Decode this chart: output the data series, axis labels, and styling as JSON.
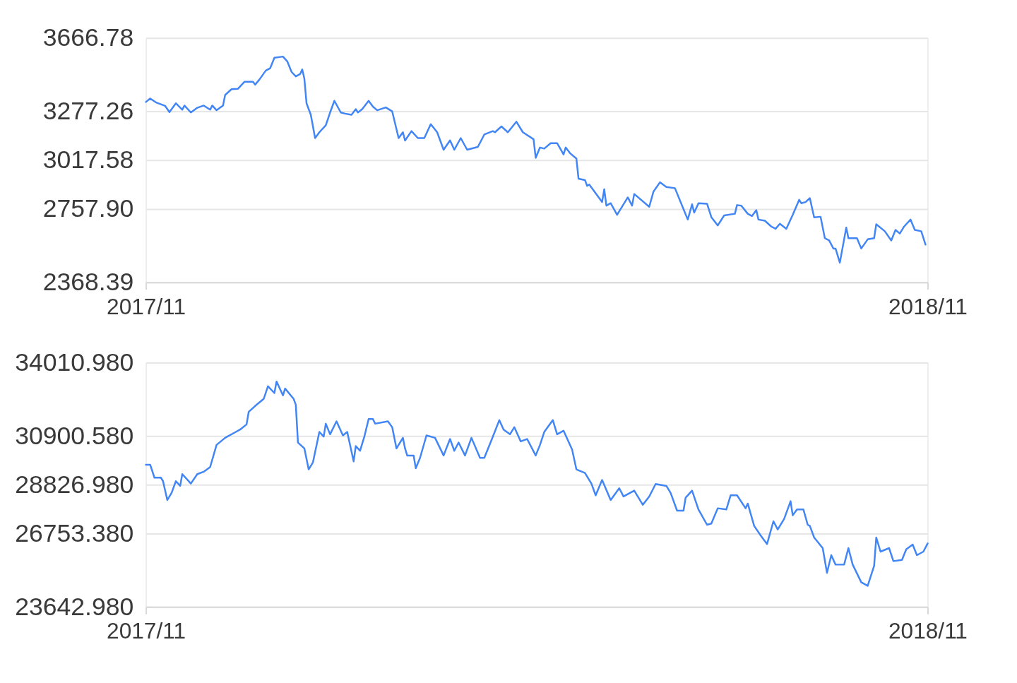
{
  "chart_data": [
    {
      "type": "line",
      "color": "#4285f4",
      "grid": "y",
      "xlim": [
        "2017-11-28",
        "2018-11-28"
      ],
      "xticks": [
        {
          "value": "2017-11-28",
          "label": "2017/11"
        },
        {
          "value": "2018-11-28",
          "label": "2018/11"
        }
      ],
      "ylim": [
        2368.39,
        3666.78
      ],
      "yticks": [
        2368.39,
        {
          "value": 2757.9,
          "label": "2757.90"
        },
        3017.58,
        3277.26,
        3666.78
      ],
      "x": [
        "2017-11-28",
        "2017-11-30",
        "2017-12-03",
        "2017-12-07",
        "2017-12-09",
        "2017-12-12",
        "2017-12-15",
        "2017-12-16",
        "2017-12-19",
        "2017-12-22",
        "2017-12-25",
        "2017-12-28",
        "2017-12-29",
        "2017-12-31",
        "2018-01-03",
        "2018-01-04",
        "2018-01-07",
        "2018-01-10",
        "2018-01-13",
        "2018-01-17",
        "2018-01-18",
        "2018-01-20",
        "2018-01-23",
        "2018-01-25",
        "2018-01-27",
        "2018-01-31",
        "2018-02-02",
        "2018-02-04",
        "2018-02-06",
        "2018-02-08",
        "2018-02-09",
        "2018-02-10",
        "2018-02-11",
        "2018-02-13",
        "2018-02-15",
        "2018-02-17",
        "2018-02-20",
        "2018-02-22",
        "2018-02-24",
        "2018-02-27",
        "2018-03-01",
        "2018-03-04",
        "2018-03-06",
        "2018-03-07",
        "2018-03-09",
        "2018-03-12",
        "2018-03-14",
        "2018-03-16",
        "2018-03-20",
        "2018-03-23",
        "2018-03-26",
        "2018-03-28",
        "2018-03-29",
        "2018-04-01",
        "2018-04-04",
        "2018-04-07",
        "2018-04-10",
        "2018-04-13",
        "2018-04-16",
        "2018-04-19",
        "2018-04-21",
        "2018-04-24",
        "2018-04-27",
        "2018-05-02",
        "2018-05-05",
        "2018-05-09",
        "2018-05-10",
        "2018-05-13",
        "2018-05-16",
        "2018-05-20",
        "2018-05-23",
        "2018-05-28",
        "2018-05-29",
        "2018-05-31",
        "2018-06-02",
        "2018-06-05",
        "2018-06-08",
        "2018-06-11",
        "2018-06-12",
        "2018-06-14",
        "2018-06-17",
        "2018-06-18",
        "2018-06-21",
        "2018-06-22",
        "2018-06-23",
        "2018-06-29",
        "2018-06-30",
        "2018-07-01",
        "2018-07-03",
        "2018-07-06",
        "2018-07-11",
        "2018-07-13",
        "2018-07-14",
        "2018-07-21",
        "2018-07-23",
        "2018-07-26",
        "2018-07-29",
        "2018-08-02",
        "2018-08-06",
        "2018-08-08",
        "2018-08-10",
        "2018-08-11",
        "2018-08-13",
        "2018-08-17",
        "2018-08-19",
        "2018-08-22",
        "2018-08-25",
        "2018-08-30",
        "2018-08-31",
        "2018-09-02",
        "2018-09-05",
        "2018-09-07",
        "2018-09-09",
        "2018-09-10",
        "2018-09-13",
        "2018-09-16",
        "2018-09-18",
        "2018-09-20",
        "2018-09-23",
        "2018-09-26",
        "2018-09-29",
        "2018-09-30",
        "2018-10-02",
        "2018-10-04",
        "2018-10-06",
        "2018-10-09",
        "2018-10-11",
        "2018-10-13",
        "2018-10-15",
        "2018-10-16",
        "2018-10-18",
        "2018-10-21",
        "2018-10-22",
        "2018-10-26",
        "2018-10-28",
        "2018-10-31",
        "2018-11-03",
        "2018-11-04",
        "2018-11-08",
        "2018-11-11",
        "2018-11-13",
        "2018-11-15",
        "2018-11-17",
        "2018-11-20",
        "2018-11-22",
        "2018-11-25",
        "2018-11-27"
      ],
      "values": [
        3327,
        3345,
        3323,
        3306,
        3273,
        3320,
        3286,
        3308,
        3271,
        3296,
        3308,
        3286,
        3308,
        3283,
        3308,
        3364,
        3395,
        3397,
        3434,
        3434,
        3419,
        3446,
        3494,
        3506,
        3562,
        3568,
        3543,
        3487,
        3463,
        3475,
        3500,
        3450,
        3320,
        3259,
        3135,
        3166,
        3203,
        3271,
        3333,
        3271,
        3265,
        3259,
        3289,
        3271,
        3289,
        3333,
        3302,
        3283,
        3298,
        3277,
        3135,
        3166,
        3122,
        3172,
        3135,
        3135,
        3209,
        3166,
        3073,
        3123,
        3073,
        3135,
        3073,
        3088,
        3154,
        3172,
        3166,
        3197,
        3166,
        3222,
        3166,
        3129,
        3030,
        3085,
        3079,
        3108,
        3108,
        3048,
        3085,
        3055,
        3026,
        2919,
        2912,
        2881,
        2888,
        2795,
        2863,
        2776,
        2789,
        2727,
        2820,
        2776,
        2838,
        2770,
        2851,
        2900,
        2875,
        2869,
        2758,
        2702,
        2783,
        2739,
        2789,
        2786,
        2715,
        2671,
        2724,
        2733,
        2779,
        2776,
        2733,
        2721,
        2752,
        2702,
        2696,
        2665,
        2653,
        2680,
        2653,
        2727,
        2807,
        2789,
        2795,
        2816,
        2714,
        2717,
        2603,
        2591,
        2548,
        2548,
        2473,
        2659,
        2603,
        2603,
        2548,
        2597,
        2603,
        2677,
        2640,
        2591,
        2647,
        2628,
        2665,
        2702,
        2647,
        2640,
        2569
      ]
    },
    {
      "type": "line",
      "color": "#4285f4",
      "grid": "y",
      "xlim": [
        "2017-11-28",
        "2018-11-28"
      ],
      "xticks": [
        {
          "value": "2017-11-28",
          "label": "2017/11"
        },
        {
          "value": "2018-11-28",
          "label": "2018/11"
        }
      ],
      "ylim": [
        23642.98,
        34010.98
      ],
      "yticks": [
        {
          "value": 23642.98,
          "label": "23642.980"
        },
        {
          "value": 26753.38,
          "label": "26753.380"
        },
        {
          "value": 28826.98,
          "label": "28826.980"
        },
        {
          "value": 30900.58,
          "label": "30900.580"
        },
        {
          "value": 34010.98,
          "label": "34010.980"
        }
      ],
      "x": [
        "2017-11-28",
        "2017-11-30",
        "2017-12-02",
        "2017-12-05",
        "2017-12-06",
        "2017-12-08",
        "2017-12-10",
        "2017-12-12",
        "2017-12-14",
        "2017-12-15",
        "2017-12-19",
        "2017-12-22",
        "2017-12-25",
        "2017-12-28",
        "2017-12-31",
        "2018-01-04",
        "2018-01-09",
        "2018-01-11",
        "2018-01-14",
        "2018-01-15",
        "2018-01-18",
        "2018-01-22",
        "2018-01-24",
        "2018-01-27",
        "2018-01-28",
        "2018-01-31",
        "2018-02-01",
        "2018-02-05",
        "2018-02-06",
        "2018-02-07",
        "2018-02-10",
        "2018-02-12",
        "2018-02-14",
        "2018-02-17",
        "2018-02-19",
        "2018-02-20",
        "2018-02-22",
        "2018-02-25",
        "2018-02-28",
        "2018-03-02",
        "2018-03-05",
        "2018-03-06",
        "2018-03-08",
        "2018-03-10",
        "2018-03-12",
        "2018-03-14",
        "2018-03-15",
        "2018-03-21",
        "2018-03-23",
        "2018-03-25",
        "2018-03-28",
        "2018-03-29",
        "2018-03-30",
        "2018-04-02",
        "2018-04-03",
        "2018-04-05",
        "2018-04-08",
        "2018-04-12",
        "2018-04-16",
        "2018-04-19",
        "2018-04-21",
        "2018-04-23",
        "2018-04-26",
        "2018-04-29",
        "2018-05-03",
        "2018-05-05",
        "2018-05-09",
        "2018-05-12",
        "2018-05-14",
        "2018-05-17",
        "2018-05-19",
        "2018-05-22",
        "2018-05-25",
        "2018-05-29",
        "2018-05-31",
        "2018-06-02",
        "2018-06-06",
        "2018-06-08",
        "2018-06-11",
        "2018-06-15",
        "2018-06-17",
        "2018-06-21",
        "2018-06-24",
        "2018-06-26",
        "2018-06-29",
        "2018-07-03",
        "2018-07-07",
        "2018-07-09",
        "2018-07-14",
        "2018-07-18",
        "2018-07-21",
        "2018-07-24",
        "2018-07-29",
        "2018-07-31",
        "2018-08-03",
        "2018-08-06",
        "2018-08-07",
        "2018-08-10",
        "2018-08-13",
        "2018-08-17",
        "2018-08-19",
        "2018-08-22",
        "2018-08-26",
        "2018-08-28",
        "2018-08-31",
        "2018-09-04",
        "2018-09-05",
        "2018-09-08",
        "2018-09-11",
        "2018-09-14",
        "2018-09-17",
        "2018-09-19",
        "2018-09-22",
        "2018-09-25",
        "2018-09-26",
        "2018-09-28",
        "2018-10-01",
        "2018-10-03",
        "2018-10-04",
        "2018-10-06",
        "2018-10-10",
        "2018-10-12",
        "2018-10-14",
        "2018-10-16",
        "2018-10-20",
        "2018-10-22",
        "2018-10-24",
        "2018-10-28",
        "2018-10-31",
        "2018-11-03",
        "2018-11-04",
        "2018-11-06",
        "2018-11-10",
        "2018-11-12",
        "2018-11-16",
        "2018-11-18",
        "2018-11-21",
        "2018-11-23",
        "2018-11-26",
        "2018-11-28"
      ],
      "values": [
        29680,
        29680,
        29130,
        29130,
        28980,
        28180,
        28480,
        28980,
        28780,
        29280,
        28880,
        29280,
        29380,
        29580,
        30520,
        30820,
        31070,
        31170,
        31390,
        31920,
        32170,
        32470,
        33010,
        32720,
        33210,
        32620,
        32910,
        32470,
        32220,
        30620,
        30370,
        29480,
        29780,
        31070,
        30870,
        31420,
        30970,
        31520,
        30920,
        31070,
        29820,
        30470,
        30270,
        30870,
        31620,
        31620,
        31420,
        31520,
        31270,
        30370,
        30820,
        30370,
        30070,
        30070,
        29530,
        29970,
        30920,
        30820,
        30070,
        30770,
        30270,
        30620,
        30070,
        30820,
        29970,
        29970,
        30870,
        31570,
        31170,
        30970,
        31270,
        30670,
        30770,
        30070,
        30520,
        31070,
        31570,
        30970,
        31120,
        30320,
        29480,
        29330,
        28880,
        28380,
        29030,
        28180,
        28680,
        28330,
        28580,
        27980,
        28330,
        28860,
        28780,
        28480,
        27730,
        27730,
        28280,
        28580,
        27780,
        27130,
        27180,
        27830,
        27780,
        28380,
        28380,
        27830,
        28030,
        27080,
        26680,
        26310,
        27280,
        26930,
        27380,
        28130,
        27530,
        27780,
        27780,
        27130,
        27080,
        26590,
        26140,
        25090,
        25840,
        25440,
        25440,
        26140,
        25440,
        24690,
        24540,
        25390,
        26590,
        25990,
        26140,
        25590,
        25640,
        26090,
        26290,
        25840,
        25990,
        26340
      ]
    }
  ]
}
